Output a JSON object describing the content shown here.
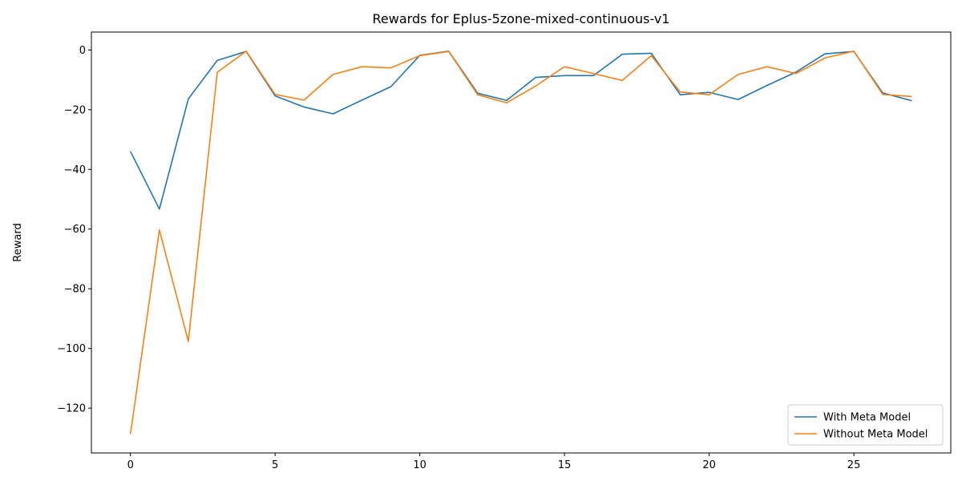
{
  "chart_data": {
    "type": "line",
    "title": "Rewards for Eplus-5zone-mixed-continuous-v1",
    "xlabel": "",
    "ylabel": "Reward",
    "xlim": [
      -1.35,
      28.35
    ],
    "ylim": [
      -135,
      6
    ],
    "xticks": [
      0,
      5,
      10,
      15,
      20,
      25
    ],
    "yticks": [
      -120,
      -100,
      -80,
      -60,
      -40,
      -20,
      0
    ],
    "grid": false,
    "legend_position": "lower-right",
    "x": [
      0,
      1,
      2,
      3,
      4,
      5,
      6,
      7,
      8,
      9,
      10,
      11,
      12,
      13,
      14,
      15,
      16,
      17,
      18,
      19,
      20,
      21,
      22,
      23,
      24,
      25,
      26,
      27
    ],
    "series": [
      {
        "name": "With Meta Model",
        "color": "#1f77b4",
        "values": [
          -34,
          -53.3,
          -16.4,
          -3.5,
          -0.5,
          -15.4,
          -19.1,
          -21.4,
          -16.8,
          -12.3,
          -1.8,
          -0.4,
          -14.5,
          -16.9,
          -9.2,
          -8.6,
          -8.6,
          -1.4,
          -1.1,
          -15,
          -14.2,
          -16.6,
          -11.9,
          -7.4,
          -1.3,
          -0.5,
          -14.4,
          -17
        ]
      },
      {
        "name": "Without Meta Model",
        "color": "#ff7f0e",
        "values": [
          -128.7,
          -60.3,
          -97.6,
          -7.5,
          -0.4,
          -14.9,
          -16.8,
          -8.2,
          -5.6,
          -6,
          -1.9,
          -0.5,
          -15,
          -17.7,
          -12.1,
          -5.6,
          -7.9,
          -10.2,
          -1.9,
          -14.1,
          -15,
          -8.2,
          -5.6,
          -7.9,
          -2.7,
          -0.4,
          -14.9,
          -15.6
        ]
      }
    ]
  }
}
